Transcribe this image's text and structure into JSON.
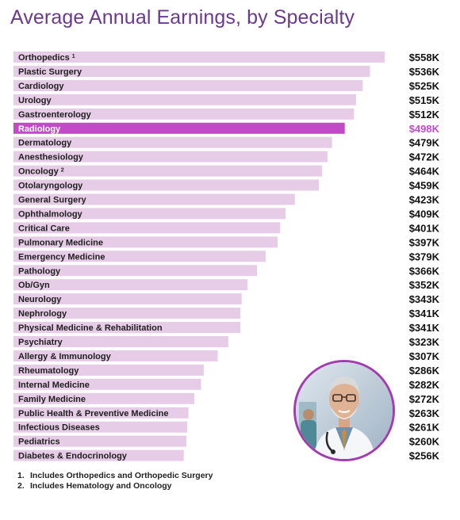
{
  "chart_data": {
    "type": "bar",
    "orientation": "horizontal",
    "title": "Average Annual Earnings, by Specialty",
    "xlabel": "",
    "ylabel": "",
    "grid": false,
    "highlight_color": "#c24ac8",
    "bar_color": "#e6cce6",
    "highlighted_category": "Radiology",
    "categories": [
      "Orthopedics",
      "Plastic Surgery",
      "Cardiology",
      "Urology",
      "Gastroenterology",
      "Radiology",
      "Dermatology",
      "Anesthesiology",
      "Oncology",
      "Otolaryngology",
      "General Surgery",
      "Ophthalmology",
      "Critical Care",
      "Pulmonary Medicine",
      "Emergency Medicine",
      "Pathology",
      "Ob/Gyn",
      "Neurology",
      "Nephrology",
      "Physical Medicine & Rehabilitation",
      "Psychiatry",
      "Allergy & Immunology",
      "Rheumatology",
      "Internal Medicine",
      "Family Medicine",
      "Public Health & Preventive Medicine",
      "Infectious Diseases",
      "Pediatrics",
      "Diabetes & Endocrinology"
    ],
    "category_footnote_marks": [
      "1",
      "",
      "",
      "",
      "",
      "",
      "",
      "",
      "2",
      "",
      "",
      "",
      "",
      "",
      "",
      "",
      "",
      "",
      "",
      "",
      "",
      "",
      "",
      "",
      "",
      "",
      "",
      "",
      ""
    ],
    "values": [
      558,
      536,
      525,
      515,
      512,
      498,
      479,
      472,
      464,
      459,
      423,
      409,
      401,
      397,
      379,
      366,
      352,
      343,
      341,
      341,
      323,
      307,
      286,
      282,
      272,
      263,
      261,
      260,
      256
    ],
    "value_labels": [
      "$558K",
      "$536K",
      "$525K",
      "$515K",
      "$512K",
      "$498K",
      "$479K",
      "$472K",
      "$464K",
      "$459K",
      "$423K",
      "$409K",
      "$401K",
      "$397K",
      "$379K",
      "$366K",
      "$352K",
      "$343K",
      "$341K",
      "$341K",
      "$323K",
      "$307K",
      "$286K",
      "$282K",
      "$272K",
      "$263K",
      "$261K",
      "$260K",
      "$256K"
    ],
    "footnotes": [
      {
        "mark": "1.",
        "text": "Includes Orthopedics and Orthopedic Surgery"
      },
      {
        "mark": "2.",
        "text": "Includes Hematology and Oncology"
      }
    ]
  },
  "image": {
    "icon": "doctor-portrait-icon"
  }
}
